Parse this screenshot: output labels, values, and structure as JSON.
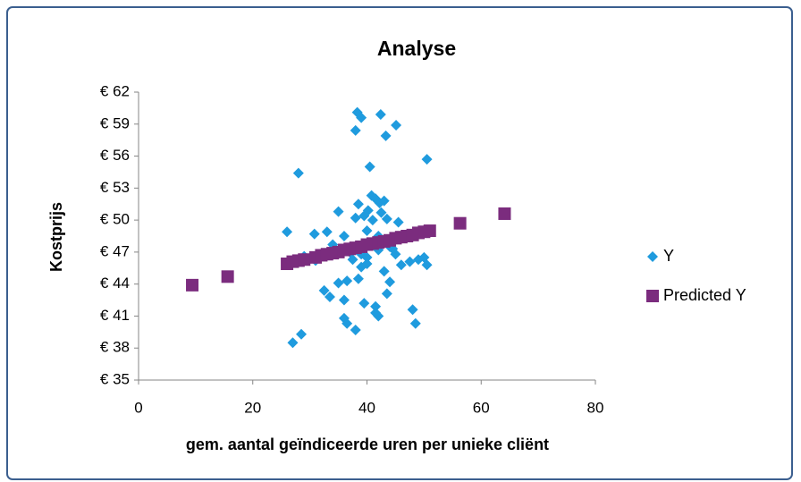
{
  "chart_data": {
    "type": "scatter",
    "title": "Analyse",
    "x_label": "gem. aantal geïndiceerde uren per unieke cliënt",
    "y_label": "Kostprijs",
    "xlim": [
      0,
      80
    ],
    "xticks": [
      0,
      20,
      40,
      60,
      80
    ],
    "ylim": [
      35,
      62
    ],
    "yticks": [
      {
        "value": 35,
        "label": "€ 35"
      },
      {
        "value": 38,
        "label": "€ 38"
      },
      {
        "value": 41,
        "label": "€ 41"
      },
      {
        "value": 44,
        "label": "€ 44"
      },
      {
        "value": 47,
        "label": "€ 47"
      },
      {
        "value": 50,
        "label": "€ 50"
      },
      {
        "value": 53,
        "label": "€ 53"
      },
      {
        "value": 56,
        "label": "€ 56"
      },
      {
        "value": 59,
        "label": "€ 59"
      },
      {
        "value": 62,
        "label": "€ 62"
      }
    ],
    "grid": false,
    "legend": "right",
    "series": [
      {
        "name": "Y",
        "color": "#1f9bde",
        "marker": "diamond",
        "x": [
          38.3,
          39,
          42.4,
          45.1,
          38,
          43.3,
          28,
          40.5,
          50.5,
          26,
          30.8,
          33,
          35,
          38.5,
          38,
          39.5,
          40.2,
          40.8,
          41.5,
          42.2,
          43,
          42.5,
          41,
          43.5,
          45.5,
          40,
          36,
          34,
          32,
          31,
          29,
          37,
          38,
          39,
          40,
          42,
          44,
          45,
          46,
          47.5,
          49,
          50,
          50.5,
          43,
          44,
          38.5,
          36.5,
          35,
          39,
          40,
          32.5,
          33.5,
          36,
          39.5,
          41.5,
          43.5,
          48,
          36,
          36.5,
          38,
          41.5,
          42,
          48.5,
          27,
          28.5,
          44.5,
          42,
          40.5,
          37.5,
          44
        ],
        "values": [
          60.1,
          59.6,
          59.9,
          58.9,
          58.4,
          57.9,
          54.4,
          55,
          55.7,
          48.9,
          48.7,
          48.9,
          50.8,
          51.5,
          50.2,
          50.4,
          50.9,
          52.3,
          52,
          51.6,
          51.8,
          50.7,
          50,
          50.1,
          49.8,
          49,
          48.5,
          47.7,
          46.8,
          46.2,
          46.6,
          47,
          47.5,
          46.8,
          46.5,
          47.2,
          47.5,
          46.8,
          45.8,
          46.1,
          46.3,
          46.5,
          45.8,
          45.2,
          44.2,
          44.5,
          44.3,
          44.1,
          45.6,
          45.9,
          43.4,
          42.8,
          42.5,
          42.2,
          41.9,
          43.1,
          41.6,
          40.8,
          40.3,
          39.7,
          41.3,
          41,
          40.3,
          38.5,
          39.3,
          47.3,
          48.5,
          47.8,
          46.3,
          48.2
        ]
      },
      {
        "name": "Predicted Y",
        "color": "#7b2c7e",
        "marker": "square",
        "x": [
          9.4,
          15.6,
          26,
          27,
          28,
          29,
          31,
          32,
          33,
          34,
          35,
          36,
          37,
          38,
          39,
          40,
          41,
          42,
          43,
          44,
          45,
          46,
          47,
          48,
          49,
          50,
          51,
          56.3,
          64.1
        ],
        "values": [
          43.9,
          44.7,
          45.9,
          46.1,
          46.2,
          46.3,
          46.5,
          46.7,
          46.8,
          46.9,
          47.0,
          47.2,
          47.3,
          47.4,
          47.5,
          47.7,
          47.8,
          47.9,
          48.0,
          48.1,
          48.3,
          48.4,
          48.5,
          48.6,
          48.8,
          48.9,
          49.0,
          49.7,
          50.6
        ]
      }
    ]
  }
}
